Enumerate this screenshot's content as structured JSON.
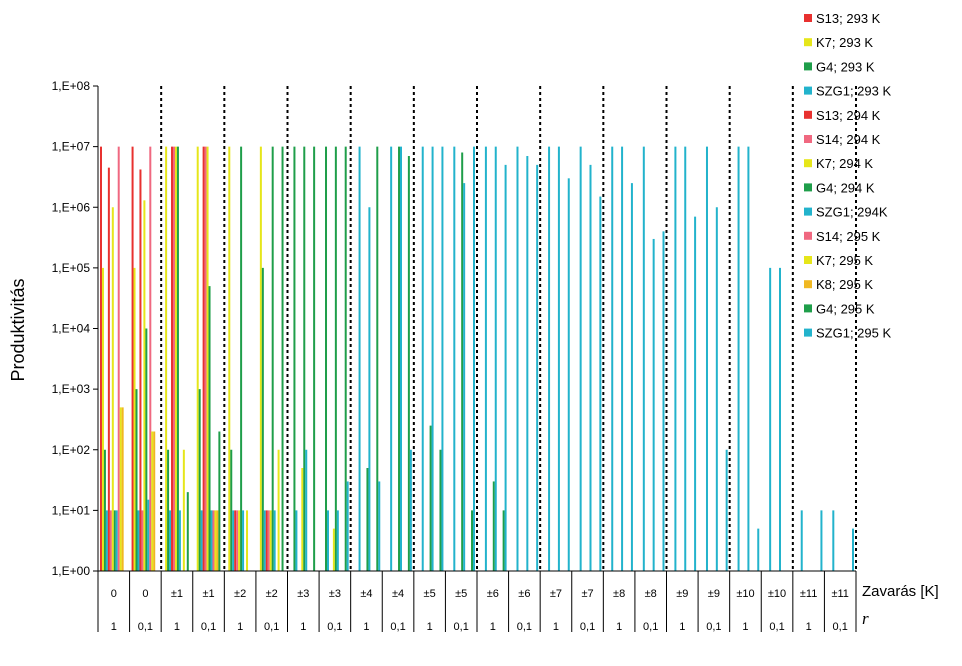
{
  "chart_data": {
    "type": "bar",
    "ylabel": "Produktivitás",
    "xlabel": "Zavarás [K]",
    "r_label": "r",
    "y_scale": "log",
    "ylim": [
      1,
      100000000
    ],
    "y_ticks": [
      1,
      10,
      100,
      1000,
      10000,
      100000,
      1000000,
      10000000,
      100000000
    ],
    "y_tick_labels": [
      "1,E+00",
      "1,E+01",
      "1,E+02",
      "1,E+03",
      "1,E+04",
      "1,E+05",
      "1,E+06",
      "1,E+07",
      "1,E+08"
    ],
    "grid": false,
    "legend_position": "right",
    "categories": [
      {
        "zavaras": "0",
        "r": "1"
      },
      {
        "zavaras": "0",
        "r": "0,1"
      },
      {
        "zavaras": "±1",
        "r": "1"
      },
      {
        "zavaras": "±1",
        "r": "0,1"
      },
      {
        "zavaras": "±2",
        "r": "1"
      },
      {
        "zavaras": "±2",
        "r": "0,1"
      },
      {
        "zavaras": "±3",
        "r": "1"
      },
      {
        "zavaras": "±3",
        "r": "0,1"
      },
      {
        "zavaras": "±4",
        "r": "1"
      },
      {
        "zavaras": "±4",
        "r": "0,1"
      },
      {
        "zavaras": "±5",
        "r": "1"
      },
      {
        "zavaras": "±5",
        "r": "0,1"
      },
      {
        "zavaras": "±6",
        "r": "1"
      },
      {
        "zavaras": "±6",
        "r": "0,1"
      },
      {
        "zavaras": "±7",
        "r": "1"
      },
      {
        "zavaras": "±7",
        "r": "0,1"
      },
      {
        "zavaras": "±8",
        "r": "1"
      },
      {
        "zavaras": "±8",
        "r": "0,1"
      },
      {
        "zavaras": "±9",
        "r": "1"
      },
      {
        "zavaras": "±9",
        "r": "0,1"
      },
      {
        "zavaras": "±10",
        "r": "1"
      },
      {
        "zavaras": "±10",
        "r": "0,1"
      },
      {
        "zavaras": "±11",
        "r": "1"
      },
      {
        "zavaras": "±11",
        "r": "0,1"
      }
    ],
    "series": [
      {
        "name": "S13; 293 K",
        "color": "#e8312f",
        "values": [
          10000000,
          10000000,
          0,
          0,
          0,
          0,
          0,
          0,
          0,
          0,
          0,
          0,
          0,
          0,
          0,
          0,
          0,
          0,
          0,
          0,
          0,
          0,
          0,
          0
        ]
      },
      {
        "name": "K7; 293 K",
        "color": "#e6e61a",
        "values": [
          100000,
          100000,
          10000000,
          10000000,
          10000000,
          10000000,
          0,
          0,
          0,
          0,
          0,
          0,
          0,
          0,
          0,
          0,
          0,
          0,
          0,
          0,
          0,
          0,
          0,
          0
        ]
      },
      {
        "name": "G4; 293 K",
        "color": "#1f9e4a",
        "values": [
          100,
          1000,
          100,
          1000,
          100,
          100000,
          10000000,
          10000000,
          0,
          0,
          0,
          0,
          0,
          0,
          0,
          0,
          0,
          0,
          0,
          0,
          0,
          0,
          0,
          0
        ]
      },
      {
        "name": "SZG1; 293 K",
        "color": "#22b3cc",
        "values": [
          10,
          10,
          10,
          10,
          10,
          10,
          10,
          10,
          10000000,
          10000000,
          10000000,
          10000000,
          10000000,
          10000000,
          10000000,
          10000000,
          10000000,
          10000000,
          10000000,
          10000000,
          10000000,
          100000,
          10,
          10
        ]
      },
      {
        "name": "S13; 294 K",
        "color": "#e8312f",
        "values": [
          4500000,
          4200000,
          10000000,
          10000000,
          10,
          10,
          0,
          0,
          0,
          0,
          0,
          0,
          0,
          0,
          0,
          0,
          0,
          0,
          0,
          0,
          0,
          0,
          0,
          0
        ]
      },
      {
        "name": "S14; 294 K",
        "color": "#f06880",
        "values": [
          10,
          10,
          10000000,
          10000000,
          10,
          10,
          0,
          0,
          0,
          0,
          0,
          0,
          0,
          0,
          0,
          0,
          0,
          0,
          0,
          0,
          0,
          0,
          0,
          0
        ]
      },
      {
        "name": "K7; 294 K",
        "color": "#e6e61a",
        "values": [
          1000000,
          1300000,
          10000000,
          10000000,
          10,
          10,
          50,
          5,
          0,
          0,
          0,
          0,
          0,
          0,
          0,
          0,
          0,
          0,
          0,
          0,
          0,
          0,
          0,
          0
        ]
      },
      {
        "name": "G4; 294 K",
        "color": "#1f9e4a",
        "values": [
          10,
          10000,
          10000000,
          50000,
          10000000,
          10000000,
          10000000,
          10000000,
          50,
          10000000,
          250,
          8000000,
          30,
          0,
          0,
          0,
          0,
          0,
          0,
          0,
          0,
          0,
          0,
          0
        ]
      },
      {
        "name": "SZG1; 294K",
        "color": "#22b3cc",
        "values": [
          10,
          15,
          10,
          10,
          10,
          10,
          100,
          10,
          1000000,
          10000000,
          10000000,
          2500000,
          10000000,
          7000000,
          10000000,
          5000000,
          10000000,
          300000,
          10000000,
          1000000,
          10000000,
          100000,
          0,
          0
        ]
      },
      {
        "name": "S14; 295 K",
        "color": "#f06880",
        "values": [
          10000000,
          10000000,
          0,
          10,
          0,
          0,
          0,
          0,
          0,
          0,
          0,
          0,
          0,
          0,
          0,
          0,
          0,
          0,
          0,
          0,
          0,
          0,
          0,
          0
        ]
      },
      {
        "name": "K7; 295 K",
        "color": "#e6e61a",
        "values": [
          500,
          200,
          100,
          10,
          10,
          100,
          0,
          0,
          0,
          0,
          0,
          0,
          0,
          0,
          0,
          0,
          0,
          0,
          0,
          0,
          0,
          0,
          0,
          0
        ]
      },
      {
        "name": "K8; 295 K",
        "color": "#f0b822",
        "values": [
          500,
          200,
          0,
          10,
          0,
          0,
          0,
          0,
          0,
          0,
          0,
          0,
          0,
          0,
          0,
          0,
          0,
          0,
          0,
          0,
          0,
          0,
          0,
          0
        ]
      },
      {
        "name": "G4; 295 K",
        "color": "#1f9e4a",
        "values": [
          0,
          0,
          20,
          200,
          0,
          10000000,
          10000000,
          10000000,
          10000000,
          7000000,
          100,
          10,
          10,
          0,
          0,
          0,
          0,
          0,
          0,
          0,
          0,
          0,
          0,
          0
        ]
      },
      {
        "name": "SZG1; 295 K",
        "color": "#22b3cc",
        "values": [
          0,
          0,
          0,
          0,
          0,
          0,
          0,
          30,
          30,
          100,
          10000000,
          10000000,
          5000000,
          5000000,
          3000000,
          1500000,
          2500000,
          400000,
          700000,
          100,
          5,
          0,
          10,
          5
        ]
      }
    ]
  }
}
